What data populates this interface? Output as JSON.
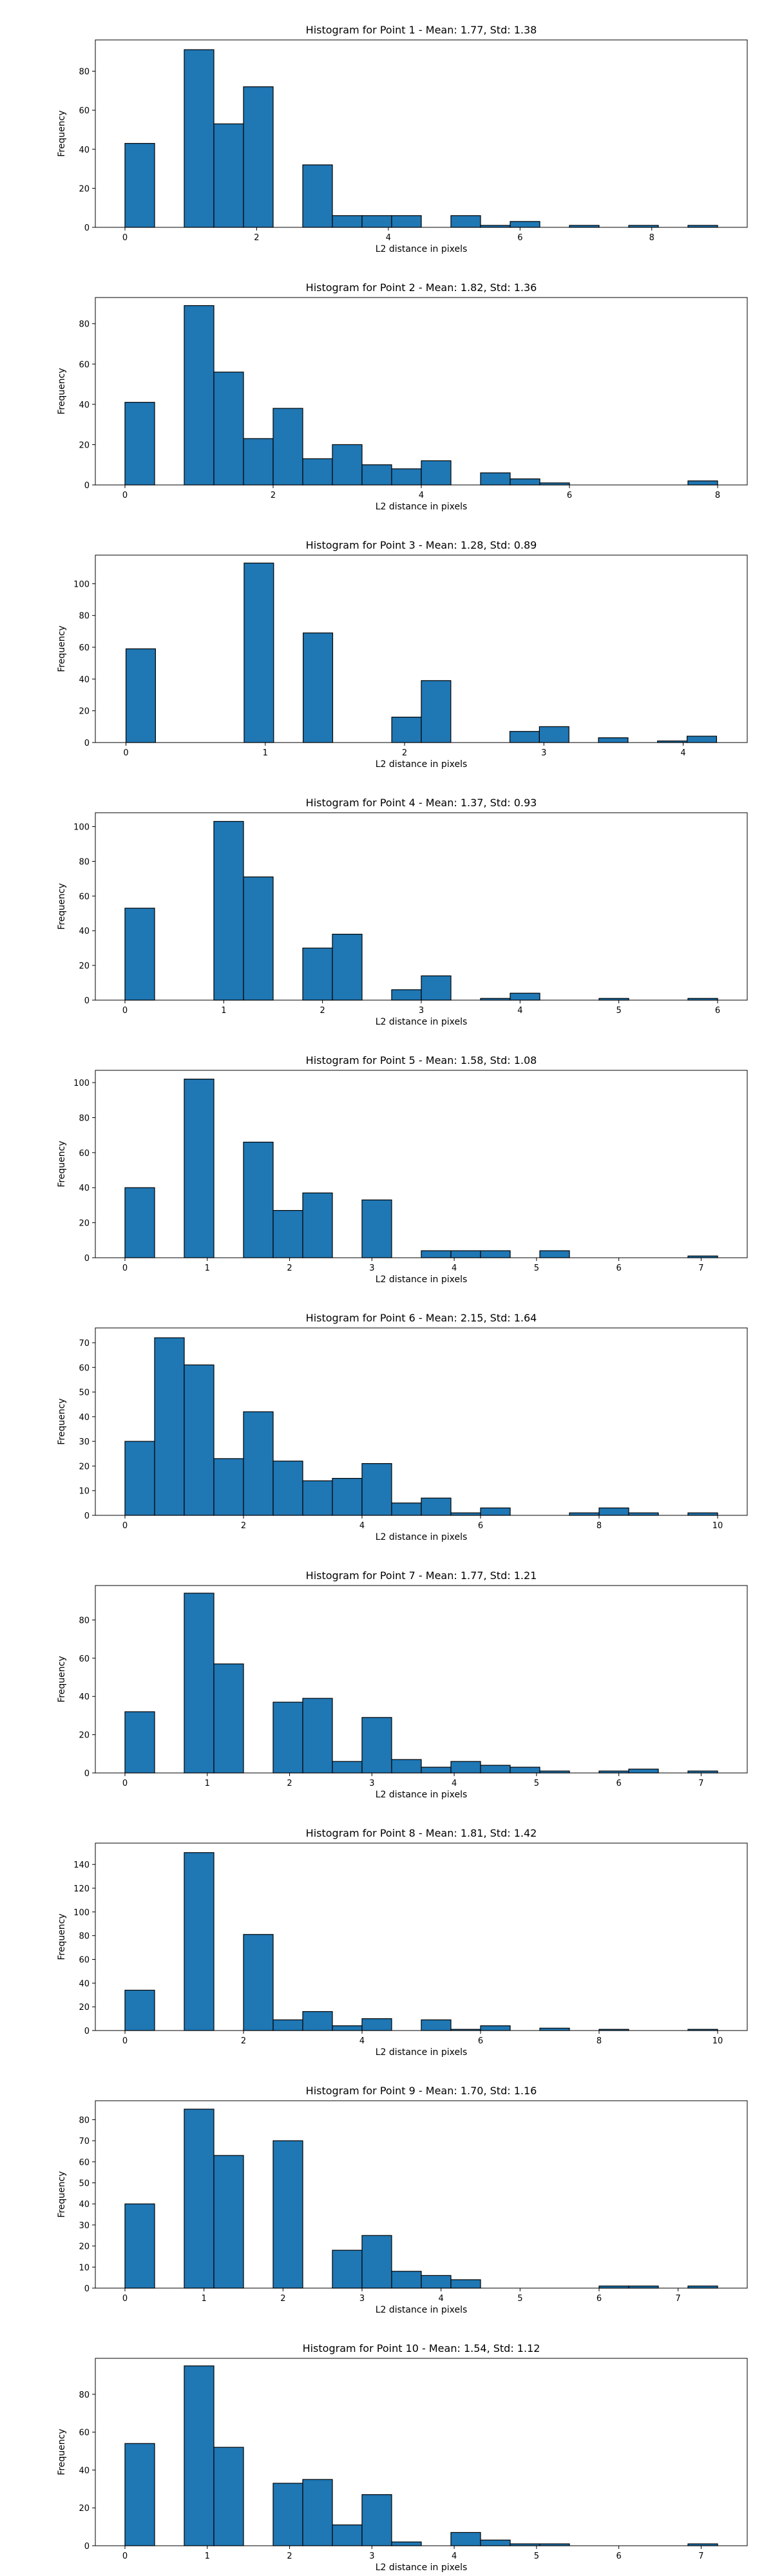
{
  "chart_data": [
    {
      "type": "bar",
      "title": "Histogram for Point 1 - Mean: 1.77, Std: 1.38",
      "xlabel": "L2 distance in pixels",
      "ylabel": "Frequency",
      "xlim": [
        -0.45,
        9.45
      ],
      "ylim": [
        0,
        96
      ],
      "xticks": [
        0,
        2,
        4,
        6,
        8
      ],
      "yticks": [
        0,
        20,
        40,
        60,
        80
      ],
      "bins": [
        {
          "x0": 0.0,
          "x1": 0.45,
          "value": 43
        },
        {
          "x0": 0.9,
          "x1": 1.35,
          "value": 91
        },
        {
          "x0": 1.35,
          "x1": 1.8,
          "value": 53
        },
        {
          "x0": 1.8,
          "x1": 2.25,
          "value": 72
        },
        {
          "x0": 2.7,
          "x1": 3.15,
          "value": 32
        },
        {
          "x0": 3.15,
          "x1": 3.6,
          "value": 6
        },
        {
          "x0": 3.6,
          "x1": 4.05,
          "value": 6
        },
        {
          "x0": 4.05,
          "x1": 4.5,
          "value": 6
        },
        {
          "x0": 4.95,
          "x1": 5.4,
          "value": 6
        },
        {
          "x0": 5.4,
          "x1": 5.85,
          "value": 1
        },
        {
          "x0": 5.85,
          "x1": 6.3,
          "value": 3
        },
        {
          "x0": 6.75,
          "x1": 7.2,
          "value": 1
        },
        {
          "x0": 7.65,
          "x1": 8.1,
          "value": 1
        },
        {
          "x0": 8.55,
          "x1": 9.0,
          "value": 1
        }
      ]
    },
    {
      "type": "bar",
      "title": "Histogram for Point 2 - Mean: 1.82, Std: 1.36",
      "xlabel": "L2 distance in pixels",
      "ylabel": "Frequency",
      "xlim": [
        -0.4,
        8.4
      ],
      "ylim": [
        0,
        93
      ],
      "xticks": [
        0,
        2,
        4,
        6,
        8
      ],
      "yticks": [
        0,
        20,
        40,
        60,
        80
      ],
      "bins": [
        {
          "x0": 0.0,
          "x1": 0.4,
          "value": 41
        },
        {
          "x0": 0.8,
          "x1": 1.2,
          "value": 89
        },
        {
          "x0": 1.2,
          "x1": 1.6,
          "value": 56
        },
        {
          "x0": 1.6,
          "x1": 2.0,
          "value": 23
        },
        {
          "x0": 2.0,
          "x1": 2.4,
          "value": 38
        },
        {
          "x0": 2.4,
          "x1": 2.8,
          "value": 13
        },
        {
          "x0": 2.8,
          "x1": 3.2,
          "value": 20
        },
        {
          "x0": 3.2,
          "x1": 3.6,
          "value": 10
        },
        {
          "x0": 3.6,
          "x1": 4.0,
          "value": 8
        },
        {
          "x0": 4.0,
          "x1": 4.4,
          "value": 12
        },
        {
          "x0": 4.8,
          "x1": 5.2,
          "value": 6
        },
        {
          "x0": 5.2,
          "x1": 5.6,
          "value": 3
        },
        {
          "x0": 5.6,
          "x1": 6.0,
          "value": 1
        },
        {
          "x0": 7.6,
          "x1": 8.0,
          "value": 2
        }
      ]
    },
    {
      "type": "bar",
      "title": "Histogram for Point 3 - Mean: 1.28, Std: 0.89",
      "xlabel": "L2 distance in pixels",
      "ylabel": "Frequency",
      "xlim": [
        -0.22,
        4.46
      ],
      "ylim": [
        0,
        118
      ],
      "xticks": [
        0,
        1,
        2,
        3,
        4
      ],
      "yticks": [
        0,
        20,
        40,
        60,
        80,
        100
      ],
      "bins": [
        {
          "x0": 0.0,
          "x1": 0.212,
          "value": 59
        },
        {
          "x0": 0.848,
          "x1": 1.06,
          "value": 113
        },
        {
          "x0": 1.272,
          "x1": 1.484,
          "value": 69
        },
        {
          "x0": 1.908,
          "x1": 2.12,
          "value": 16
        },
        {
          "x0": 2.12,
          "x1": 2.332,
          "value": 39
        },
        {
          "x0": 2.756,
          "x1": 2.968,
          "value": 7
        },
        {
          "x0": 2.968,
          "x1": 3.18,
          "value": 10
        },
        {
          "x0": 3.392,
          "x1": 3.604,
          "value": 3
        },
        {
          "x0": 3.816,
          "x1": 4.028,
          "value": 1
        },
        {
          "x0": 4.028,
          "x1": 4.24,
          "value": 4
        }
      ]
    },
    {
      "type": "bar",
      "title": "Histogram for Point 4 - Mean: 1.37, Std: 0.93",
      "xlabel": "L2 distance in pixels",
      "ylabel": "Frequency",
      "xlim": [
        -0.3,
        6.3
      ],
      "ylim": [
        0,
        108
      ],
      "xticks": [
        0,
        1,
        2,
        3,
        4,
        5,
        6
      ],
      "yticks": [
        0,
        20,
        40,
        60,
        80,
        100
      ],
      "bins": [
        {
          "x0": 0.0,
          "x1": 0.3,
          "value": 53
        },
        {
          "x0": 0.9,
          "x1": 1.2,
          "value": 103
        },
        {
          "x0": 1.2,
          "x1": 1.5,
          "value": 71
        },
        {
          "x0": 1.8,
          "x1": 2.1,
          "value": 30
        },
        {
          "x0": 2.1,
          "x1": 2.4,
          "value": 38
        },
        {
          "x0": 2.7,
          "x1": 3.0,
          "value": 6
        },
        {
          "x0": 3.0,
          "x1": 3.3,
          "value": 14
        },
        {
          "x0": 3.6,
          "x1": 3.9,
          "value": 1
        },
        {
          "x0": 3.9,
          "x1": 4.2,
          "value": 4
        },
        {
          "x0": 4.8,
          "x1": 5.1,
          "value": 1
        },
        {
          "x0": 5.7,
          "x1": 6.0,
          "value": 1
        }
      ]
    },
    {
      "type": "bar",
      "title": "Histogram for Point 5 - Mean: 1.58, Std: 1.08",
      "xlabel": "L2 distance in pixels",
      "ylabel": "Frequency",
      "xlim": [
        -0.36,
        7.56
      ],
      "ylim": [
        0,
        107
      ],
      "xticks": [
        0,
        1,
        2,
        3,
        4,
        5,
        6,
        7
      ],
      "yticks": [
        0,
        20,
        40,
        60,
        80,
        100
      ],
      "bins": [
        {
          "x0": 0.0,
          "x1": 0.36,
          "value": 40
        },
        {
          "x0": 0.72,
          "x1": 1.08,
          "value": 102
        },
        {
          "x0": 1.44,
          "x1": 1.8,
          "value": 66
        },
        {
          "x0": 1.8,
          "x1": 2.16,
          "value": 27
        },
        {
          "x0": 2.16,
          "x1": 2.52,
          "value": 37
        },
        {
          "x0": 2.88,
          "x1": 3.24,
          "value": 33
        },
        {
          "x0": 3.6,
          "x1": 3.96,
          "value": 4
        },
        {
          "x0": 3.96,
          "x1": 4.32,
          "value": 4
        },
        {
          "x0": 4.32,
          "x1": 4.68,
          "value": 4
        },
        {
          "x0": 5.04,
          "x1": 5.4,
          "value": 4
        },
        {
          "x0": 6.84,
          "x1": 7.2,
          "value": 1
        }
      ]
    },
    {
      "type": "bar",
      "title": "Histogram for Point 6 - Mean: 2.15, Std: 1.64",
      "xlabel": "L2 distance in pixels",
      "ylabel": "Frequency",
      "xlim": [
        -0.5,
        10.5
      ],
      "ylim": [
        0,
        76
      ],
      "xticks": [
        0,
        2,
        4,
        6,
        8,
        10
      ],
      "yticks": [
        0,
        10,
        20,
        30,
        40,
        50,
        60,
        70
      ],
      "bins": [
        {
          "x0": 0.0,
          "x1": 0.5,
          "value": 30
        },
        {
          "x0": 0.5,
          "x1": 1.0,
          "value": 72
        },
        {
          "x0": 1.0,
          "x1": 1.5,
          "value": 61
        },
        {
          "x0": 1.5,
          "x1": 2.0,
          "value": 23
        },
        {
          "x0": 2.0,
          "x1": 2.5,
          "value": 42
        },
        {
          "x0": 2.5,
          "x1": 3.0,
          "value": 22
        },
        {
          "x0": 3.0,
          "x1": 3.5,
          "value": 14
        },
        {
          "x0": 3.5,
          "x1": 4.0,
          "value": 15
        },
        {
          "x0": 4.0,
          "x1": 4.5,
          "value": 21
        },
        {
          "x0": 4.5,
          "x1": 5.0,
          "value": 5
        },
        {
          "x0": 5.0,
          "x1": 5.5,
          "value": 7
        },
        {
          "x0": 5.5,
          "x1": 6.0,
          "value": 1
        },
        {
          "x0": 6.0,
          "x1": 6.5,
          "value": 3
        },
        {
          "x0": 7.5,
          "x1": 8.0,
          "value": 1
        },
        {
          "x0": 8.0,
          "x1": 8.5,
          "value": 3
        },
        {
          "x0": 8.5,
          "x1": 9.0,
          "value": 1
        },
        {
          "x0": 9.5,
          "x1": 10.0,
          "value": 1
        }
      ]
    },
    {
      "type": "bar",
      "title": "Histogram for Point 7 - Mean: 1.77, Std: 1.21",
      "xlabel": "L2 distance in pixels",
      "ylabel": "Frequency",
      "xlim": [
        -0.36,
        7.56
      ],
      "ylim": [
        0,
        98
      ],
      "xticks": [
        0,
        1,
        2,
        3,
        4,
        5,
        6,
        7
      ],
      "yticks": [
        0,
        20,
        40,
        60,
        80
      ],
      "bins": [
        {
          "x0": 0.0,
          "x1": 0.36,
          "value": 32
        },
        {
          "x0": 0.72,
          "x1": 1.08,
          "value": 94
        },
        {
          "x0": 1.08,
          "x1": 1.44,
          "value": 57
        },
        {
          "x0": 1.8,
          "x1": 2.16,
          "value": 37
        },
        {
          "x0": 2.16,
          "x1": 2.52,
          "value": 39
        },
        {
          "x0": 2.52,
          "x1": 2.88,
          "value": 6
        },
        {
          "x0": 2.88,
          "x1": 3.24,
          "value": 29
        },
        {
          "x0": 3.24,
          "x1": 3.6,
          "value": 7
        },
        {
          "x0": 3.6,
          "x1": 3.96,
          "value": 3
        },
        {
          "x0": 3.96,
          "x1": 4.32,
          "value": 6
        },
        {
          "x0": 4.32,
          "x1": 4.68,
          "value": 4
        },
        {
          "x0": 4.68,
          "x1": 5.04,
          "value": 3
        },
        {
          "x0": 5.04,
          "x1": 5.4,
          "value": 1
        },
        {
          "x0": 5.76,
          "x1": 6.12,
          "value": 1
        },
        {
          "x0": 6.12,
          "x1": 6.48,
          "value": 2
        },
        {
          "x0": 6.84,
          "x1": 7.2,
          "value": 1
        }
      ]
    },
    {
      "type": "bar",
      "title": "Histogram for Point 8 - Mean: 1.81, Std: 1.42",
      "xlabel": "L2 distance in pixels",
      "ylabel": "Frequency",
      "xlim": [
        -0.5,
        10.5
      ],
      "ylim": [
        0,
        158
      ],
      "xticks": [
        0,
        2,
        4,
        6,
        8,
        10
      ],
      "yticks": [
        0,
        20,
        40,
        60,
        80,
        100,
        120,
        140
      ],
      "bins": [
        {
          "x0": 0.0,
          "x1": 0.5,
          "value": 34
        },
        {
          "x0": 1.0,
          "x1": 1.5,
          "value": 150
        },
        {
          "x0": 2.0,
          "x1": 2.5,
          "value": 81
        },
        {
          "x0": 2.5,
          "x1": 3.0,
          "value": 9
        },
        {
          "x0": 3.0,
          "x1": 3.5,
          "value": 16
        },
        {
          "x0": 3.5,
          "x1": 4.0,
          "value": 4
        },
        {
          "x0": 4.0,
          "x1": 4.5,
          "value": 10
        },
        {
          "x0": 5.0,
          "x1": 5.5,
          "value": 9
        },
        {
          "x0": 5.5,
          "x1": 6.0,
          "value": 1
        },
        {
          "x0": 6.0,
          "x1": 6.5,
          "value": 4
        },
        {
          "x0": 7.0,
          "x1": 7.5,
          "value": 2
        },
        {
          "x0": 8.0,
          "x1": 8.5,
          "value": 1
        },
        {
          "x0": 9.5,
          "x1": 10.0,
          "value": 1
        }
      ]
    },
    {
      "type": "bar",
      "title": "Histogram for Point 9 - Mean: 1.70, Std: 1.16",
      "xlabel": "L2 distance in pixels",
      "ylabel": "Frequency",
      "xlim": [
        -0.375,
        7.875
      ],
      "ylim": [
        0,
        89
      ],
      "xticks": [
        0,
        1,
        2,
        3,
        4,
        5,
        6,
        7
      ],
      "yticks": [
        0,
        10,
        20,
        30,
        40,
        50,
        60,
        70,
        80
      ],
      "bins": [
        {
          "x0": 0.0,
          "x1": 0.375,
          "value": 40
        },
        {
          "x0": 0.75,
          "x1": 1.125,
          "value": 85
        },
        {
          "x0": 1.125,
          "x1": 1.5,
          "value": 63
        },
        {
          "x0": 1.875,
          "x1": 2.25,
          "value": 70
        },
        {
          "x0": 2.625,
          "x1": 3.0,
          "value": 18
        },
        {
          "x0": 3.0,
          "x1": 3.375,
          "value": 25
        },
        {
          "x0": 3.375,
          "x1": 3.75,
          "value": 8
        },
        {
          "x0": 3.75,
          "x1": 4.125,
          "value": 6
        },
        {
          "x0": 4.125,
          "x1": 4.5,
          "value": 4
        },
        {
          "x0": 6.0,
          "x1": 6.375,
          "value": 1
        },
        {
          "x0": 6.375,
          "x1": 6.75,
          "value": 1
        },
        {
          "x0": 7.125,
          "x1": 7.5,
          "value": 1
        }
      ]
    },
    {
      "type": "bar",
      "title": "Histogram for Point 10 - Mean: 1.54, Std: 1.12",
      "xlabel": "L2 distance in pixels",
      "ylabel": "Frequency",
      "xlim": [
        -0.36,
        7.56
      ],
      "ylim": [
        0,
        99
      ],
      "xticks": [
        0,
        1,
        2,
        3,
        4,
        5,
        6,
        7
      ],
      "yticks": [
        0,
        20,
        40,
        60,
        80
      ],
      "bins": [
        {
          "x0": 0.0,
          "x1": 0.36,
          "value": 54
        },
        {
          "x0": 0.72,
          "x1": 1.08,
          "value": 95
        },
        {
          "x0": 1.08,
          "x1": 1.44,
          "value": 52
        },
        {
          "x0": 1.8,
          "x1": 2.16,
          "value": 33
        },
        {
          "x0": 2.16,
          "x1": 2.52,
          "value": 35
        },
        {
          "x0": 2.52,
          "x1": 2.88,
          "value": 11
        },
        {
          "x0": 2.88,
          "x1": 3.24,
          "value": 27
        },
        {
          "x0": 3.24,
          "x1": 3.6,
          "value": 2
        },
        {
          "x0": 3.96,
          "x1": 4.32,
          "value": 7
        },
        {
          "x0": 4.32,
          "x1": 4.68,
          "value": 3
        },
        {
          "x0": 4.68,
          "x1": 5.04,
          "value": 1
        },
        {
          "x0": 5.04,
          "x1": 5.4,
          "value": 1
        },
        {
          "x0": 6.84,
          "x1": 7.2,
          "value": 1
        }
      ]
    }
  ],
  "colors": {
    "bar_fill": "#1f77b4",
    "bar_edge": "#000000",
    "axes": "#000000",
    "background": "#ffffff"
  }
}
